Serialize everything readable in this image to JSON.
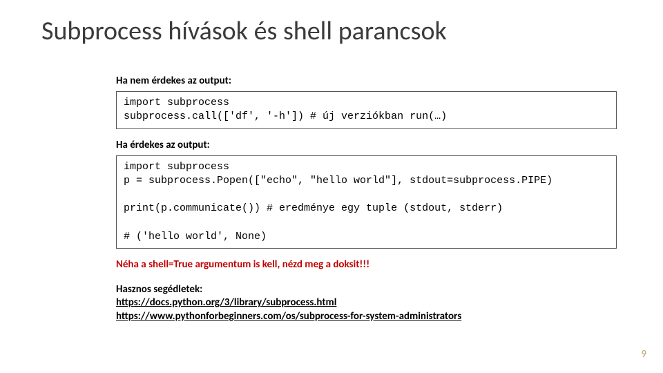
{
  "title": "Subprocess hívások és shell parancsok",
  "section1": {
    "label": "Ha nem érdekes az output:",
    "code": "import subprocess\nsubprocess.call(['df', '-h']) # új verziókban run(…)"
  },
  "section2": {
    "label": "Ha érdekes az output:",
    "code": "import subprocess\np = subprocess.Popen([\"echo\", \"hello world\"], stdout=subprocess.PIPE)\n\nprint(p.communicate()) # eredménye egy tuple (stdout, stderr)\n\n# ('hello world', None)"
  },
  "warning": "Néha a shell=True argumentum is kell, nézd meg a doksit!!!",
  "resources": {
    "label": "Hasznos segédletek:",
    "links": [
      "https://docs.python.org/3/library/subprocess.html",
      "https://www.pythonforbeginners.com/os/subprocess-for-system-administrators"
    ]
  },
  "page_number": "9",
  "colors": {
    "title_color": "#3b3b3b",
    "warn_color": "#c00000",
    "border_color": "#555555",
    "pagenum_color": "#c0a070",
    "background": "#ffffff"
  },
  "typography": {
    "title_fontsize": 38,
    "title_weight": 300,
    "body_fontsize": 15,
    "code_font": "Consolas, Courier New, monospace",
    "body_font": "Segoe UI, Calibri, Arial, sans-serif"
  }
}
